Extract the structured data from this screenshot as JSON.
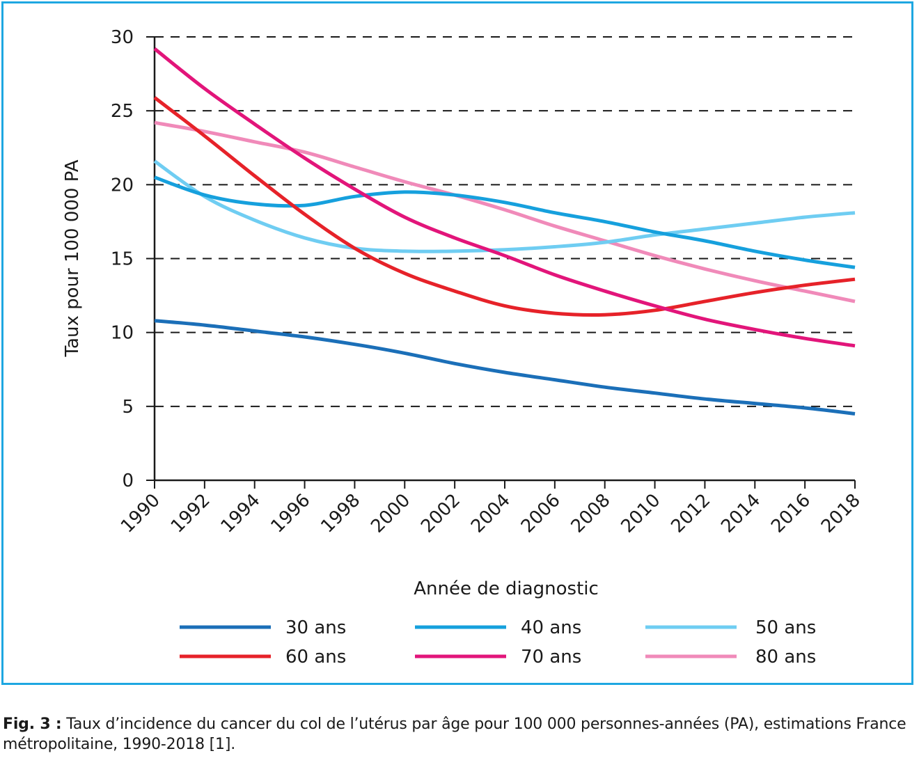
{
  "caption": {
    "lead": "Fig. 3 :",
    "text": "Taux d’incidence du cancer du col de l’utérus par âge pour 100 000 personnes-années (PA), estimations France métropolitaine, 1990-2018 [1]."
  },
  "chart_data": {
    "type": "line",
    "xlabel": "Année de diagnostic",
    "ylabel": "Taux pour 100 000 PA",
    "xlim": [
      1990,
      2018
    ],
    "ylim": [
      0,
      30
    ],
    "xticks": [
      1990,
      1992,
      1994,
      1996,
      1998,
      2000,
      2002,
      2004,
      2006,
      2008,
      2010,
      2012,
      2014,
      2016,
      2018
    ],
    "yticks": [
      0,
      5,
      10,
      15,
      20,
      25,
      30
    ],
    "grid": "horizontal dashed",
    "legend_position": "bottom",
    "x": [
      1990,
      1992,
      1994,
      1996,
      1998,
      2000,
      2002,
      2004,
      2006,
      2008,
      2010,
      2012,
      2014,
      2016,
      2018
    ],
    "series": [
      {
        "name": "30 ans",
        "color": "#1b6fb8",
        "values": [
          10.8,
          10.5,
          10.1,
          9.7,
          9.2,
          8.6,
          7.9,
          7.3,
          6.8,
          6.3,
          5.9,
          5.5,
          5.2,
          4.9,
          4.5
        ]
      },
      {
        "name": "40 ans",
        "color": "#16a0dd",
        "values": [
          20.5,
          19.3,
          18.7,
          18.6,
          19.2,
          19.5,
          19.3,
          18.8,
          18.1,
          17.5,
          16.8,
          16.2,
          15.5,
          14.9,
          14.4
        ]
      },
      {
        "name": "50 ans",
        "color": "#6fcdf2",
        "values": [
          21.6,
          19.2,
          17.6,
          16.4,
          15.7,
          15.5,
          15.5,
          15.6,
          15.8,
          16.1,
          16.6,
          17.0,
          17.4,
          17.8,
          18.1
        ]
      },
      {
        "name": "60 ans",
        "color": "#e62229",
        "values": [
          25.9,
          23.3,
          20.6,
          18.0,
          15.7,
          14.0,
          12.8,
          11.8,
          11.3,
          11.2,
          11.5,
          12.1,
          12.7,
          13.2,
          13.6
        ]
      },
      {
        "name": "70 ans",
        "color": "#e2157a",
        "values": [
          29.2,
          26.5,
          24.1,
          21.8,
          19.7,
          17.8,
          16.4,
          15.2,
          13.9,
          12.8,
          11.8,
          10.9,
          10.2,
          9.6,
          9.1
        ]
      },
      {
        "name": "80 ans",
        "color": "#f08ab9",
        "values": [
          24.2,
          23.6,
          22.9,
          22.2,
          21.2,
          20.2,
          19.3,
          18.3,
          17.2,
          16.2,
          15.2,
          14.3,
          13.5,
          12.8,
          12.1
        ]
      }
    ]
  }
}
